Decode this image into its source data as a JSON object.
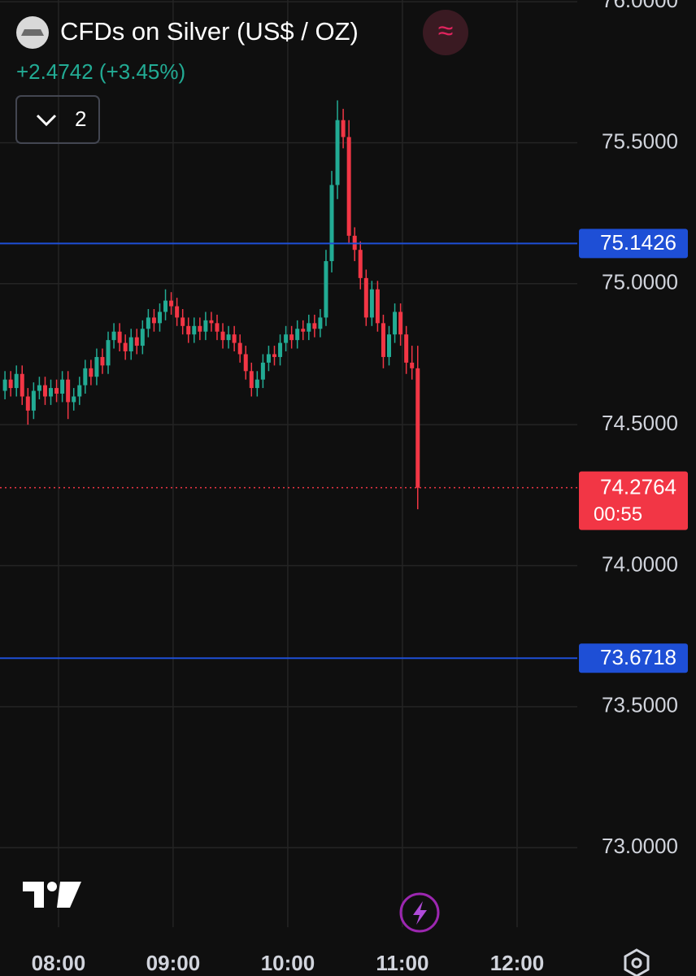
{
  "header": {
    "title": "CFDs on Silver (US$ / OZ)",
    "change": "+2.4742 (+3.45%)",
    "indicator_count": "2"
  },
  "chart_data": {
    "type": "candlestick",
    "x": [
      452,
      455,
      458,
      461,
      464,
      467,
      470,
      473,
      476,
      479,
      482,
      485,
      488,
      491,
      494,
      497,
      500,
      503,
      506,
      509,
      512,
      515,
      518,
      521,
      524,
      527,
      530,
      533,
      536,
      539,
      542,
      545,
      548,
      551,
      554,
      557,
      560,
      563,
      566,
      569,
      572,
      575,
      578,
      581,
      584,
      587,
      590,
      593,
      596,
      599,
      602,
      605,
      608,
      611,
      614,
      617,
      620,
      623,
      626,
      629,
      632,
      635,
      638,
      641,
      644,
      647,
      650,
      653,
      656,
      659,
      662,
      665,
      668
    ],
    "open": [
      74.62,
      74.66,
      74.63,
      74.68,
      74.6,
      74.55,
      74.62,
      74.64,
      74.6,
      74.63,
      74.61,
      74.66,
      74.58,
      74.6,
      74.64,
      74.7,
      74.67,
      74.74,
      74.71,
      74.8,
      74.83,
      74.79,
      74.76,
      74.81,
      74.78,
      74.84,
      74.88,
      74.86,
      74.9,
      74.94,
      74.92,
      74.88,
      74.85,
      74.82,
      74.85,
      74.83,
      74.87,
      74.86,
      74.83,
      74.8,
      74.82,
      74.79,
      74.75,
      74.69,
      74.63,
      74.66,
      74.72,
      74.75,
      74.74,
      74.79,
      74.82,
      74.8,
      74.84,
      74.83,
      74.86,
      74.84,
      74.88,
      75.08,
      75.35,
      75.58,
      75.52,
      75.17,
      75.12,
      75.02,
      74.88,
      74.98,
      74.86,
      74.74,
      74.82,
      74.9,
      74.82,
      74.72,
      74.7
    ],
    "high": [
      74.69,
      74.69,
      74.71,
      74.71,
      74.63,
      74.65,
      74.67,
      74.67,
      74.66,
      74.66,
      74.69,
      74.69,
      74.63,
      74.67,
      74.73,
      74.73,
      74.77,
      74.77,
      74.83,
      74.86,
      74.86,
      74.82,
      74.84,
      74.84,
      74.87,
      74.91,
      74.91,
      74.93,
      74.98,
      74.97,
      74.95,
      74.91,
      74.88,
      74.88,
      74.88,
      74.9,
      74.9,
      74.89,
      74.86,
      74.85,
      74.85,
      74.82,
      74.78,
      74.72,
      74.69,
      74.75,
      74.78,
      74.78,
      74.82,
      74.85,
      74.85,
      74.87,
      74.87,
      74.89,
      74.89,
      74.91,
      75.12,
      75.4,
      75.65,
      75.62,
      75.58,
      75.2,
      75.15,
      75.05,
      75.01,
      75.01,
      74.89,
      74.85,
      74.93,
      74.93,
      74.85,
      74.78,
      74.78
    ],
    "low": [
      74.59,
      74.6,
      74.6,
      74.57,
      74.5,
      74.52,
      74.59,
      74.57,
      74.57,
      74.58,
      74.58,
      74.52,
      74.55,
      74.57,
      74.61,
      74.64,
      74.64,
      74.68,
      74.68,
      74.77,
      74.76,
      74.73,
      74.73,
      74.75,
      74.75,
      74.81,
      74.83,
      74.83,
      74.87,
      74.89,
      74.85,
      74.82,
      74.79,
      74.79,
      74.8,
      74.8,
      74.83,
      74.8,
      74.77,
      74.77,
      74.76,
      74.72,
      74.66,
      74.6,
      74.6,
      74.63,
      74.69,
      74.71,
      74.71,
      74.76,
      74.77,
      74.77,
      74.8,
      74.8,
      74.81,
      74.81,
      74.85,
      75.04,
      75.3,
      75.48,
      75.14,
      75.08,
      74.98,
      74.85,
      74.85,
      74.83,
      74.7,
      74.71,
      74.79,
      74.78,
      74.68,
      74.66,
      74.2
    ],
    "close": [
      74.66,
      74.63,
      74.68,
      74.6,
      74.55,
      74.62,
      74.64,
      74.6,
      74.63,
      74.61,
      74.66,
      74.58,
      74.6,
      74.64,
      74.7,
      74.67,
      74.74,
      74.71,
      74.8,
      74.83,
      74.79,
      74.76,
      74.81,
      74.78,
      74.84,
      74.88,
      74.86,
      74.9,
      74.94,
      74.92,
      74.88,
      74.85,
      74.82,
      74.85,
      74.83,
      74.87,
      74.86,
      74.83,
      74.8,
      74.82,
      74.79,
      74.75,
      74.69,
      74.63,
      74.66,
      74.72,
      74.75,
      74.74,
      74.79,
      74.82,
      74.8,
      74.84,
      74.83,
      74.86,
      74.84,
      74.88,
      75.08,
      75.35,
      75.58,
      75.52,
      75.17,
      75.12,
      75.02,
      74.88,
      74.98,
      74.86,
      74.74,
      74.82,
      74.9,
      74.82,
      74.72,
      74.7,
      74.2764
    ],
    "up_color": "#22ab94",
    "down_color": "#f23645",
    "xlim": [
      449.4,
      751.5
    ],
    "xticks": [
      {
        "value": 480,
        "label": "08:00"
      },
      {
        "value": 540,
        "label": "09:00"
      },
      {
        "value": 600,
        "label": "10:00"
      },
      {
        "value": 660,
        "label": "11:00"
      },
      {
        "value": 720,
        "label": "12:00"
      }
    ],
    "ylim": [
      72.718,
      76.006
    ],
    "yticks": [
      {
        "value": 73,
        "label": "73.0000"
      },
      {
        "value": 73.5,
        "label": "73.5000"
      },
      {
        "value": 74,
        "label": "74.0000"
      },
      {
        "value": 74.5,
        "label": "74.5000"
      },
      {
        "value": 75,
        "label": "75.0000"
      },
      {
        "value": 75.5,
        "label": "75.5000"
      },
      {
        "value": 76,
        "label": "76.0000"
      }
    ],
    "grid": true,
    "price_lines": [
      {
        "value": 75.1426,
        "color": "#1e4fd6"
      },
      {
        "value": 73.6718,
        "color": "#1e4fd6"
      }
    ],
    "countdown": "00:55"
  }
}
